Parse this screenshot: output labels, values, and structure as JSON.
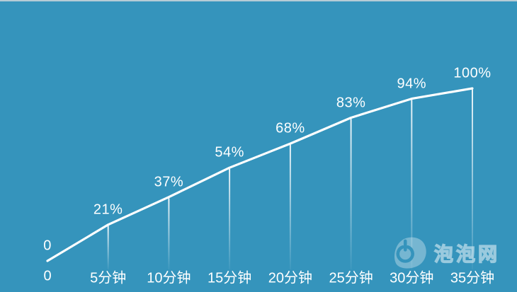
{
  "background": {
    "color": "#3594BC",
    "top_strip_color": "#B6CCD6"
  },
  "chart_data": {
    "type": "line",
    "title": "",
    "xlabel": "",
    "ylabel": "",
    "x": [
      0,
      5,
      10,
      15,
      20,
      25,
      30,
      35
    ],
    "categories": [
      "0",
      "5分钟",
      "10分钟",
      "15分钟",
      "20分钟",
      "25分钟",
      "30分钟",
      "35分钟"
    ],
    "values": [
      0,
      21,
      37,
      54,
      68,
      83,
      94,
      100
    ],
    "point_labels": [
      "0",
      "21%",
      "37%",
      "54%",
      "68%",
      "83%",
      "94%",
      "100%"
    ],
    "ylim": [
      0,
      100
    ],
    "x_unit": "分钟",
    "line_color": "#FFFFFF",
    "label_color": "#FFFFFF",
    "dropline_color": "#FFFFFF",
    "grid": false,
    "legend": false
  },
  "watermark": {
    "text": "泡泡网",
    "icon": "power-icon"
  }
}
